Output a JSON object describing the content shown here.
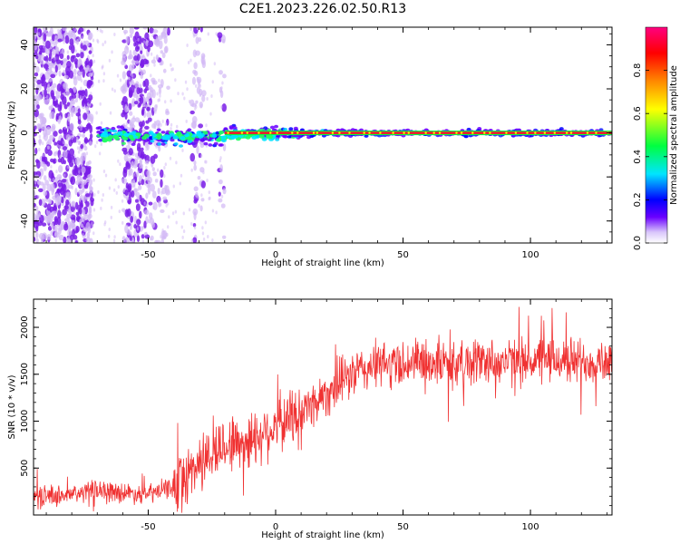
{
  "page": {
    "title": "C2E1.2023.226.02.50.R13"
  },
  "colors": {
    "snr_line": "#f03232",
    "ridge": "#e8202e",
    "speckle": "#7a1de8",
    "speckle_light": "#d2b8f5"
  },
  "chart_data": [
    {
      "type": "heatmap",
      "xlabel": "Height of straight line (km)",
      "ylabel": "Frequency (Hz)",
      "xlim": [
        -95,
        132
      ],
      "ylim": [
        -50,
        48
      ],
      "xticks": [
        -50,
        0,
        50,
        100
      ],
      "yticks": [
        -40,
        -20,
        0,
        20,
        40
      ],
      "grid": false,
      "colorbar": {
        "label": "Normalized spectral amplitude",
        "range": [
          0.0,
          1.0
        ],
        "ticks": [
          "0.0",
          "0.2",
          "0.4",
          "0.6",
          "0.8"
        ],
        "colormap": [
          "#ffffff",
          "#d9c6fb",
          "#6a00ff",
          "#0000ff",
          "#00e5ff",
          "#00ff40",
          "#ffff00",
          "#ff8800",
          "#ff0000",
          "#ff0080"
        ]
      },
      "features": {
        "broadband_noise_region_km": [
          -95,
          -20
        ],
        "ridge_frequency_hz": 0,
        "ridge_start_km": -20,
        "ridge_end_km": 132,
        "peak_amplitude": 1.0
      }
    },
    {
      "type": "line",
      "xlabel": "Height of straight line (km)",
      "ylabel": "SNR (10 * v/v)",
      "xlim": [
        -95,
        132
      ],
      "ylim": [
        0,
        2300
      ],
      "xticks": [
        -50,
        0,
        50,
        100
      ],
      "yticks": [
        500,
        1000,
        1500,
        2000
      ],
      "grid": false,
      "series": [
        {
          "x": [
            -95,
            -80,
            -70,
            -60,
            -50,
            -40,
            -30,
            -20,
            -10,
            0,
            10,
            20,
            30,
            40,
            50,
            60,
            70,
            80,
            90,
            100,
            110,
            120,
            132
          ],
          "values": [
            200,
            210,
            280,
            240,
            220,
            300,
            550,
            750,
            800,
            950,
            1100,
            1300,
            1500,
            1600,
            1620,
            1640,
            1600,
            1650,
            1630,
            1640,
            1650,
            1640,
            1650
          ]
        }
      ]
    }
  ]
}
